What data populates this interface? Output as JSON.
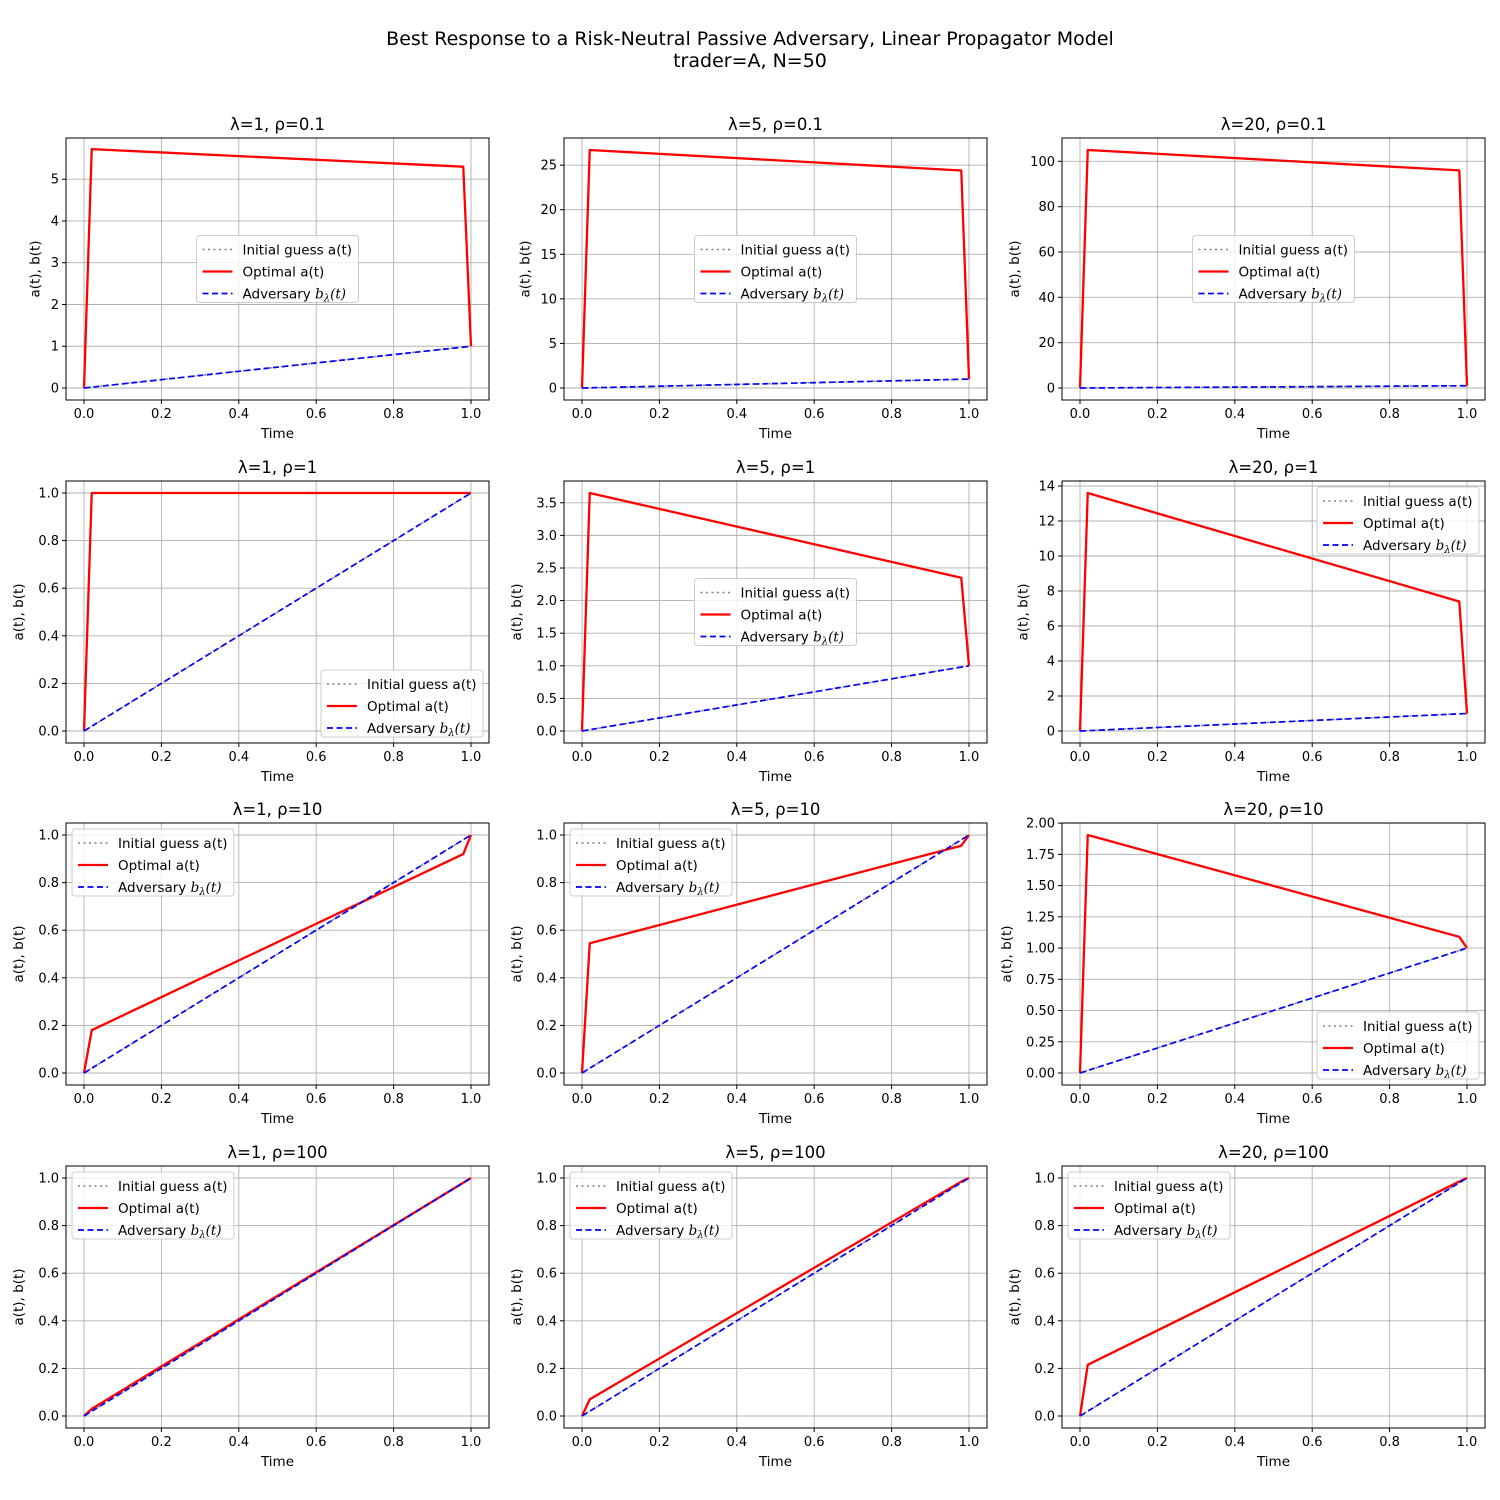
{
  "figure": {
    "title_line1": "Best Response to a Risk-Neutral Passive Adversary, Linear Propagator Model",
    "title_line2": "trader=A, N=50"
  },
  "colors": {
    "initial": "#808080",
    "optimal": "#ff0000",
    "adversary": "#0000ff"
  },
  "legend_entries": {
    "initial": "Initial guess a(t)",
    "optimal": "Optimal a(t)",
    "adversary_prefix": "Adversary ",
    "adversary_symbol": "b",
    "adversary_sub": "λ",
    "adversary_suffix": "(t)"
  },
  "chart_data": [
    {
      "type": "line",
      "title": "λ=1, ρ=0.1",
      "xlabel": "Time",
      "ylabel": "a(t), b(t)",
      "xlim": [
        0,
        1
      ],
      "ylim": [
        0,
        5.7
      ],
      "xticks": [
        "0.0",
        "0.2",
        "0.4",
        "0.6",
        "0.8",
        "1.0"
      ],
      "yticks": [
        "0",
        "1",
        "2",
        "3",
        "4",
        "5"
      ],
      "legend": "center",
      "series": [
        {
          "name": "Initial guess a(t)",
          "style": "dotted",
          "x": [
            0,
            1
          ],
          "y": [
            0,
            1
          ]
        },
        {
          "name": "Optimal a(t)",
          "style": "solid",
          "x": [
            0,
            0.02,
            0.98,
            1
          ],
          "y": [
            0,
            5.72,
            5.3,
            1
          ]
        },
        {
          "name": "Adversary b_λ(t)",
          "style": "dashed",
          "x": [
            0,
            1
          ],
          "y": [
            0,
            1
          ]
        }
      ]
    },
    {
      "type": "line",
      "title": "λ=5, ρ=0.1",
      "xlabel": "Time",
      "ylabel": "a(t), b(t)",
      "xlim": [
        0,
        1
      ],
      "ylim": [
        0,
        26.7
      ],
      "xticks": [
        "0.0",
        "0.2",
        "0.4",
        "0.6",
        "0.8",
        "1.0"
      ],
      "yticks": [
        "0",
        "5",
        "10",
        "15",
        "20",
        "25"
      ],
      "legend": "center",
      "series": [
        {
          "name": "Initial guess a(t)",
          "style": "dotted",
          "x": [
            0,
            1
          ],
          "y": [
            0,
            1
          ]
        },
        {
          "name": "Optimal a(t)",
          "style": "solid",
          "x": [
            0,
            0.02,
            0.98,
            1
          ],
          "y": [
            0,
            26.7,
            24.4,
            1
          ]
        },
        {
          "name": "Adversary b_λ(t)",
          "style": "dashed",
          "x": [
            0,
            1
          ],
          "y": [
            0,
            1
          ]
        }
      ]
    },
    {
      "type": "line",
      "title": "λ=20, ρ=0.1",
      "xlabel": "Time",
      "ylabel": "a(t), b(t)",
      "xlim": [
        0,
        1
      ],
      "ylim": [
        0,
        105
      ],
      "xticks": [
        "0.0",
        "0.2",
        "0.4",
        "0.6",
        "0.8",
        "1.0"
      ],
      "yticks": [
        "0",
        "20",
        "40",
        "60",
        "80",
        "100"
      ],
      "legend": "center",
      "series": [
        {
          "name": "Initial guess a(t)",
          "style": "dotted",
          "x": [
            0,
            1
          ],
          "y": [
            0,
            1
          ]
        },
        {
          "name": "Optimal a(t)",
          "style": "solid",
          "x": [
            0,
            0.02,
            0.98,
            1
          ],
          "y": [
            0,
            105,
            96,
            1
          ]
        },
        {
          "name": "Adversary b_λ(t)",
          "style": "dashed",
          "x": [
            0,
            1
          ],
          "y": [
            0,
            1
          ]
        }
      ]
    },
    {
      "type": "line",
      "title": "λ=1, ρ=1",
      "xlabel": "Time",
      "ylabel": "a(t), b(t)",
      "xlim": [
        0,
        1
      ],
      "ylim": [
        0,
        1
      ],
      "xticks": [
        "0.0",
        "0.2",
        "0.4",
        "0.6",
        "0.8",
        "1.0"
      ],
      "yticks": [
        "0.0",
        "0.2",
        "0.4",
        "0.6",
        "0.8",
        "1.0"
      ],
      "legend": "lower-right",
      "series": [
        {
          "name": "Initial guess a(t)",
          "style": "dotted",
          "x": [
            0,
            1
          ],
          "y": [
            0,
            1
          ]
        },
        {
          "name": "Optimal a(t)",
          "style": "solid",
          "x": [
            0,
            0.02,
            1
          ],
          "y": [
            0,
            1,
            1
          ]
        },
        {
          "name": "Adversary b_λ(t)",
          "style": "dashed",
          "x": [
            0,
            1
          ],
          "y": [
            0,
            1
          ]
        }
      ]
    },
    {
      "type": "line",
      "title": "λ=5, ρ=1",
      "xlabel": "Time",
      "ylabel": "a(t), b(t)",
      "xlim": [
        0,
        1
      ],
      "ylim": [
        0,
        3.65
      ],
      "xticks": [
        "0.0",
        "0.2",
        "0.4",
        "0.6",
        "0.8",
        "1.0"
      ],
      "yticks": [
        "0.0",
        "0.5",
        "1.0",
        "1.5",
        "2.0",
        "2.5",
        "3.0",
        "3.5"
      ],
      "legend": "center",
      "series": [
        {
          "name": "Initial guess a(t)",
          "style": "dotted",
          "x": [
            0,
            1
          ],
          "y": [
            0,
            1
          ]
        },
        {
          "name": "Optimal a(t)",
          "style": "solid",
          "x": [
            0,
            0.02,
            0.98,
            1
          ],
          "y": [
            0,
            3.65,
            2.35,
            1
          ]
        },
        {
          "name": "Adversary b_λ(t)",
          "style": "dashed",
          "x": [
            0,
            1
          ],
          "y": [
            0,
            1
          ]
        }
      ]
    },
    {
      "type": "line",
      "title": "λ=20, ρ=1",
      "xlabel": "Time",
      "ylabel": "a(t), b(t)",
      "xlim": [
        0,
        1
      ],
      "ylim": [
        0,
        13.6
      ],
      "xticks": [
        "0.0",
        "0.2",
        "0.4",
        "0.6",
        "0.8",
        "1.0"
      ],
      "yticks": [
        "0",
        "2",
        "4",
        "6",
        "8",
        "10",
        "12",
        "14"
      ],
      "legend": "upper-right",
      "series": [
        {
          "name": "Initial guess a(t)",
          "style": "dotted",
          "x": [
            0,
            1
          ],
          "y": [
            0,
            1
          ]
        },
        {
          "name": "Optimal a(t)",
          "style": "solid",
          "x": [
            0,
            0.02,
            0.98,
            1
          ],
          "y": [
            0,
            13.6,
            7.4,
            1
          ]
        },
        {
          "name": "Adversary b_λ(t)",
          "style": "dashed",
          "x": [
            0,
            1
          ],
          "y": [
            0,
            1
          ]
        }
      ]
    },
    {
      "type": "line",
      "title": "λ=1, ρ=10",
      "xlabel": "Time",
      "ylabel": "a(t), b(t)",
      "xlim": [
        0,
        1
      ],
      "ylim": [
        0,
        1
      ],
      "xticks": [
        "0.0",
        "0.2",
        "0.4",
        "0.6",
        "0.8",
        "1.0"
      ],
      "yticks": [
        "0.0",
        "0.2",
        "0.4",
        "0.6",
        "0.8",
        "1.0"
      ],
      "legend": "upper-left",
      "series": [
        {
          "name": "Initial guess a(t)",
          "style": "dotted",
          "x": [
            0,
            1
          ],
          "y": [
            0,
            1
          ]
        },
        {
          "name": "Optimal a(t)",
          "style": "solid",
          "x": [
            0,
            0.02,
            0.98,
            1
          ],
          "y": [
            0,
            0.18,
            0.92,
            1
          ]
        },
        {
          "name": "Adversary b_λ(t)",
          "style": "dashed",
          "x": [
            0,
            1
          ],
          "y": [
            0,
            1
          ]
        }
      ]
    },
    {
      "type": "line",
      "title": "λ=5, ρ=10",
      "xlabel": "Time",
      "ylabel": "a(t), b(t)",
      "xlim": [
        0,
        1
      ],
      "ylim": [
        0,
        1
      ],
      "xticks": [
        "0.0",
        "0.2",
        "0.4",
        "0.6",
        "0.8",
        "1.0"
      ],
      "yticks": [
        "0.0",
        "0.2",
        "0.4",
        "0.6",
        "0.8",
        "1.0"
      ],
      "legend": "upper-left",
      "series": [
        {
          "name": "Initial guess a(t)",
          "style": "dotted",
          "x": [
            0,
            1
          ],
          "y": [
            0,
            1
          ]
        },
        {
          "name": "Optimal a(t)",
          "style": "solid",
          "x": [
            0,
            0.02,
            0.98,
            1
          ],
          "y": [
            0,
            0.545,
            0.955,
            1
          ]
        },
        {
          "name": "Adversary b_λ(t)",
          "style": "dashed",
          "x": [
            0,
            1
          ],
          "y": [
            0,
            1
          ]
        }
      ]
    },
    {
      "type": "line",
      "title": "λ=20, ρ=10",
      "xlabel": "Time",
      "ylabel": "a(t), b(t)",
      "xlim": [
        0,
        1
      ],
      "ylim": [
        0,
        1.905
      ],
      "xticks": [
        "0.0",
        "0.2",
        "0.4",
        "0.6",
        "0.8",
        "1.0"
      ],
      "yticks": [
        "0.00",
        "0.25",
        "0.50",
        "0.75",
        "1.00",
        "1.25",
        "1.50",
        "1.75",
        "2.00"
      ],
      "legend": "lower-right",
      "series": [
        {
          "name": "Initial guess a(t)",
          "style": "dotted",
          "x": [
            0,
            1
          ],
          "y": [
            0,
            1
          ]
        },
        {
          "name": "Optimal a(t)",
          "style": "solid",
          "x": [
            0,
            0.02,
            0.98,
            1
          ],
          "y": [
            0,
            1.905,
            1.09,
            1
          ]
        },
        {
          "name": "Adversary b_λ(t)",
          "style": "dashed",
          "x": [
            0,
            1
          ],
          "y": [
            0,
            1
          ]
        }
      ]
    },
    {
      "type": "line",
      "title": "λ=1, ρ=100",
      "xlabel": "Time",
      "ylabel": "a(t), b(t)",
      "xlim": [
        0,
        1
      ],
      "ylim": [
        0,
        1
      ],
      "xticks": [
        "0.0",
        "0.2",
        "0.4",
        "0.6",
        "0.8",
        "1.0"
      ],
      "yticks": [
        "0.0",
        "0.2",
        "0.4",
        "0.6",
        "0.8",
        "1.0"
      ],
      "legend": "upper-left",
      "series": [
        {
          "name": "Initial guess a(t)",
          "style": "dotted",
          "x": [
            0,
            1
          ],
          "y": [
            0,
            1
          ]
        },
        {
          "name": "Optimal a(t)",
          "style": "solid",
          "x": [
            0,
            0.02,
            0.98,
            1
          ],
          "y": [
            0,
            0.03,
            0.98,
            1
          ]
        },
        {
          "name": "Adversary b_λ(t)",
          "style": "dashed",
          "x": [
            0,
            1
          ],
          "y": [
            0,
            1
          ]
        }
      ]
    },
    {
      "type": "line",
      "title": "λ=5, ρ=100",
      "xlabel": "Time",
      "ylabel": "a(t), b(t)",
      "xlim": [
        0,
        1
      ],
      "ylim": [
        0,
        1
      ],
      "xticks": [
        "0.0",
        "0.2",
        "0.4",
        "0.6",
        "0.8",
        "1.0"
      ],
      "yticks": [
        "0.0",
        "0.2",
        "0.4",
        "0.6",
        "0.8",
        "1.0"
      ],
      "legend": "upper-left",
      "series": [
        {
          "name": "Initial guess a(t)",
          "style": "dotted",
          "x": [
            0,
            1
          ],
          "y": [
            0,
            1
          ]
        },
        {
          "name": "Optimal a(t)",
          "style": "solid",
          "x": [
            0,
            0.02,
            0.98,
            1
          ],
          "y": [
            0,
            0.07,
            0.985,
            1
          ]
        },
        {
          "name": "Adversary b_λ(t)",
          "style": "dashed",
          "x": [
            0,
            1
          ],
          "y": [
            0,
            1
          ]
        }
      ]
    },
    {
      "type": "line",
      "title": "λ=20, ρ=100",
      "xlabel": "Time",
      "ylabel": "a(t), b(t)",
      "xlim": [
        0,
        1
      ],
      "ylim": [
        0,
        1
      ],
      "xticks": [
        "0.0",
        "0.2",
        "0.4",
        "0.6",
        "0.8",
        "1.0"
      ],
      "yticks": [
        "0.0",
        "0.2",
        "0.4",
        "0.6",
        "0.8",
        "1.0"
      ],
      "legend": "upper-left",
      "series": [
        {
          "name": "Initial guess a(t)",
          "style": "dotted",
          "x": [
            0,
            1
          ],
          "y": [
            0,
            1
          ]
        },
        {
          "name": "Optimal a(t)",
          "style": "solid",
          "x": [
            0,
            0.02,
            0.98,
            1
          ],
          "y": [
            0,
            0.215,
            0.985,
            1
          ]
        },
        {
          "name": "Adversary b_λ(t)",
          "style": "dashed",
          "x": [
            0,
            1
          ],
          "y": [
            0,
            1
          ]
        }
      ]
    }
  ]
}
